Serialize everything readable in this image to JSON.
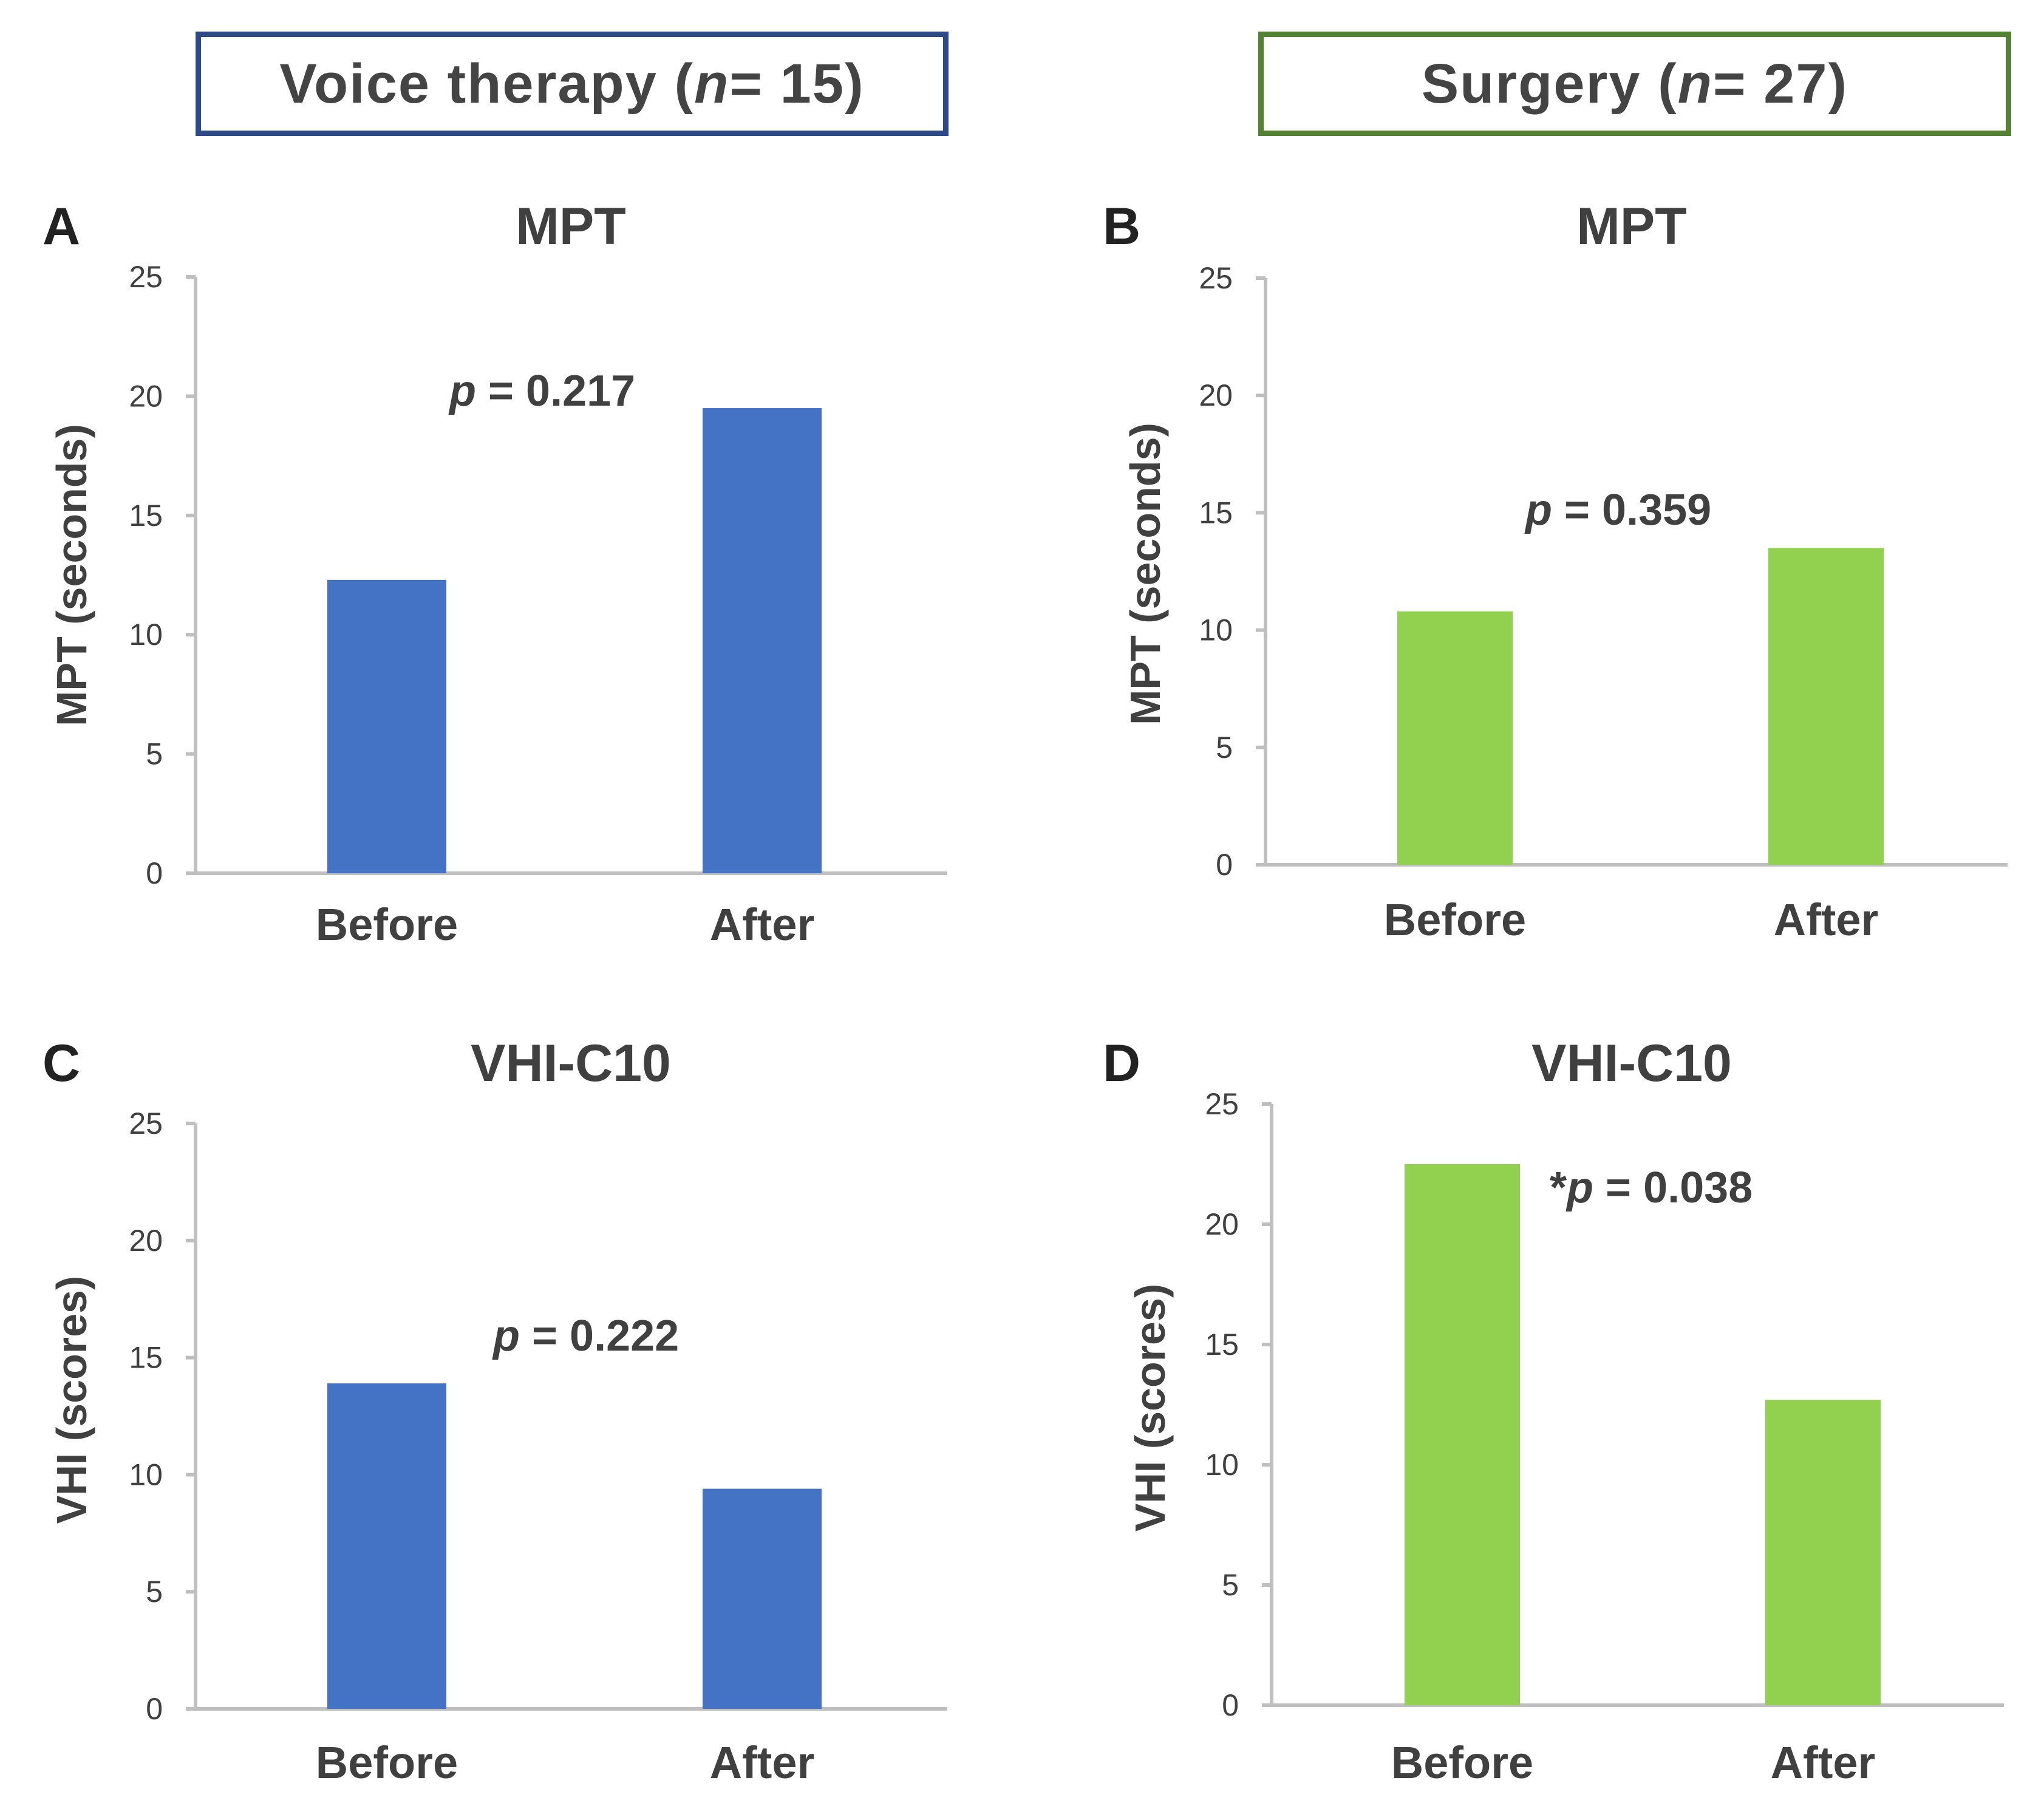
{
  "headers": {
    "voice_therapy": {
      "label": "Voice therapy (",
      "n_label": "n",
      "n_value": " = 15)",
      "color": "#2e4a86"
    },
    "surgery": {
      "label": "Surgery (",
      "n_label": "n",
      "n_value": " = 27)",
      "color": "#548235"
    }
  },
  "chart_data": [
    {
      "panel": "A",
      "type": "bar",
      "title": "MPT",
      "ylabel": "MPT (seconds)",
      "xlabel": "",
      "categories": [
        "Before",
        "After"
      ],
      "values": [
        12.3,
        19.5
      ],
      "ylim": [
        0,
        25
      ],
      "yticks": [
        0,
        5,
        10,
        15,
        20,
        25
      ],
      "color": "#4472c4",
      "annotation": {
        "prefix": "",
        "p": "p",
        "text": " = 0.217"
      }
    },
    {
      "panel": "B",
      "type": "bar",
      "title": "MPT",
      "ylabel": "MPT (seconds)",
      "xlabel": "",
      "categories": [
        "Before",
        "After"
      ],
      "values": [
        10.8,
        13.5
      ],
      "ylim": [
        0,
        25
      ],
      "yticks": [
        0,
        5,
        10,
        15,
        20,
        25
      ],
      "color": "#92d050",
      "annotation": {
        "prefix": "",
        "p": "p",
        "text": " = 0.359"
      }
    },
    {
      "panel": "C",
      "type": "bar",
      "title": "VHI-C10",
      "ylabel": "VHI (scores)",
      "xlabel": "",
      "categories": [
        "Before",
        "After"
      ],
      "values": [
        13.9,
        9.4
      ],
      "ylim": [
        0,
        25
      ],
      "yticks": [
        0,
        5,
        10,
        15,
        20,
        25
      ],
      "color": "#4472c4",
      "annotation": {
        "prefix": "",
        "p": "p",
        "text": " = 0.222"
      }
    },
    {
      "panel": "D",
      "type": "bar",
      "title": "VHI-C10",
      "ylabel": "VHI (scores)",
      "xlabel": "",
      "categories": [
        "Before",
        "After"
      ],
      "values": [
        22.5,
        12.7
      ],
      "ylim": [
        0,
        25
      ],
      "yticks": [
        0,
        5,
        10,
        15,
        20,
        25
      ],
      "color": "#92d050",
      "annotation": {
        "prefix": "*",
        "p": "p",
        "text": " = 0.038"
      }
    }
  ]
}
